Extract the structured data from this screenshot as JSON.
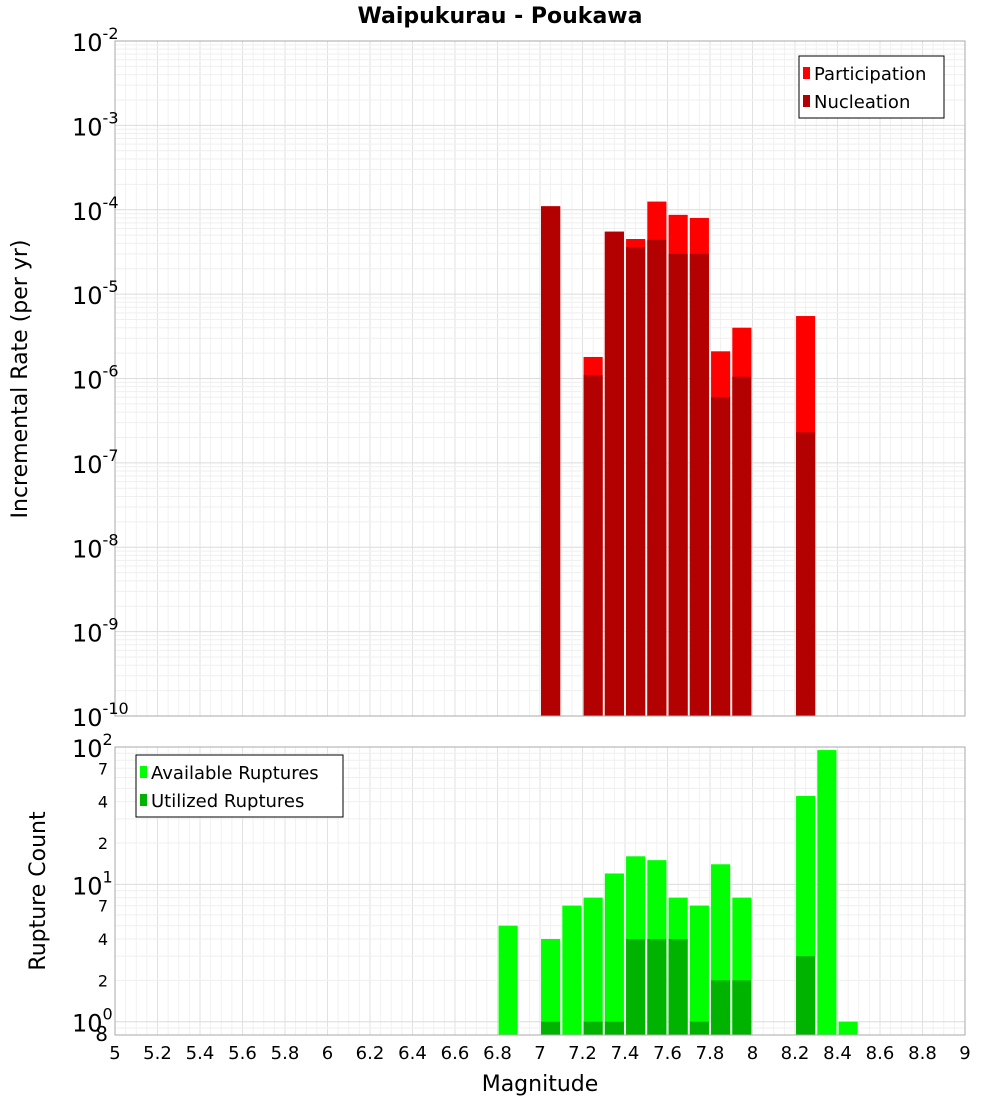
{
  "chart_data": [
    {
      "type": "bar",
      "title": "Waipukurau - Poukawa",
      "xlabel": "",
      "ylabel": "Incremental Rate (per yr)",
      "yscale": "log",
      "xlim": [
        5,
        9
      ],
      "ylim": [
        1e-10,
        0.01
      ],
      "grid": true,
      "legend_position": "top-right",
      "y_tick_labels": [
        {
          "base": "10",
          "exp": "-2"
        },
        {
          "base": "10",
          "exp": "-3"
        },
        {
          "base": "10",
          "exp": "-4"
        },
        {
          "base": "10",
          "exp": "-5"
        },
        {
          "base": "10",
          "exp": "-6"
        },
        {
          "base": "10",
          "exp": "-7"
        },
        {
          "base": "10",
          "exp": "-8"
        },
        {
          "base": "10",
          "exp": "-9"
        },
        {
          "base": "10",
          "exp": "-10"
        }
      ],
      "series": [
        {
          "name": "Participation",
          "color": "#ff0000",
          "x": [
            7.05,
            7.25,
            7.35,
            7.45,
            7.55,
            7.65,
            7.75,
            7.85,
            7.95,
            8.25
          ],
          "values": [
            0.00011,
            1.8e-06,
            5.5e-05,
            4.5e-05,
            0.000125,
            8.7e-05,
            8e-05,
            2.1e-06,
            4e-06,
            5.5e-06
          ]
        },
        {
          "name": "Nucleation",
          "color": "#b30000",
          "x": [
            7.05,
            7.25,
            7.35,
            7.45,
            7.55,
            7.65,
            7.75,
            7.85,
            7.95,
            8.25
          ],
          "values": [
            0.00011,
            1.1e-06,
            5.5e-05,
            3.6e-05,
            4.4e-05,
            3e-05,
            3e-05,
            6e-07,
            1.05e-06,
            2.3e-07
          ]
        }
      ]
    },
    {
      "type": "bar",
      "title": "",
      "xlabel": "Magnitude",
      "ylabel": "Rupture Count",
      "yscale": "log",
      "xlim": [
        5,
        9
      ],
      "ylim": [
        0.8,
        100
      ],
      "grid": true,
      "legend_position": "top-left",
      "x_ticks": [
        "5",
        "5.2",
        "5.4",
        "5.6",
        "5.8",
        "6",
        "6.2",
        "6.4",
        "6.6",
        "6.8",
        "7",
        "7.2",
        "7.4",
        "7.6",
        "7.8",
        "8",
        "8.2",
        "8.4",
        "8.6",
        "8.8",
        "9"
      ],
      "y_tick_labels": [
        {
          "value": 100,
          "base": "10",
          "exp": "2"
        },
        {
          "value": 70,
          "label": "7"
        },
        {
          "value": 40,
          "label": "4"
        },
        {
          "value": 20,
          "label": "2"
        },
        {
          "value": 10,
          "base": "10",
          "exp": "1"
        },
        {
          "value": 7,
          "label": "7"
        },
        {
          "value": 4,
          "label": "4"
        },
        {
          "value": 2,
          "label": "2"
        },
        {
          "value": 1,
          "base": "10",
          "exp": "0"
        },
        {
          "value": 0.8,
          "label": "8"
        }
      ],
      "series": [
        {
          "name": "Available Ruptures",
          "color": "#00ff00",
          "x": [
            6.85,
            7.05,
            7.15,
            7.25,
            7.35,
            7.45,
            7.55,
            7.65,
            7.75,
            7.85,
            7.95,
            8.25,
            8.35,
            8.45
          ],
          "values": [
            5,
            4,
            7,
            8,
            12,
            16,
            15,
            8,
            7,
            14,
            8,
            44,
            95,
            1
          ]
        },
        {
          "name": "Utilized Ruptures",
          "color": "#00b300",
          "x": [
            7.05,
            7.25,
            7.35,
            7.45,
            7.55,
            7.65,
            7.75,
            7.85,
            7.95,
            8.25
          ],
          "values": [
            1,
            1,
            1,
            4,
            4,
            4,
            1,
            2,
            2,
            3
          ]
        }
      ]
    }
  ]
}
